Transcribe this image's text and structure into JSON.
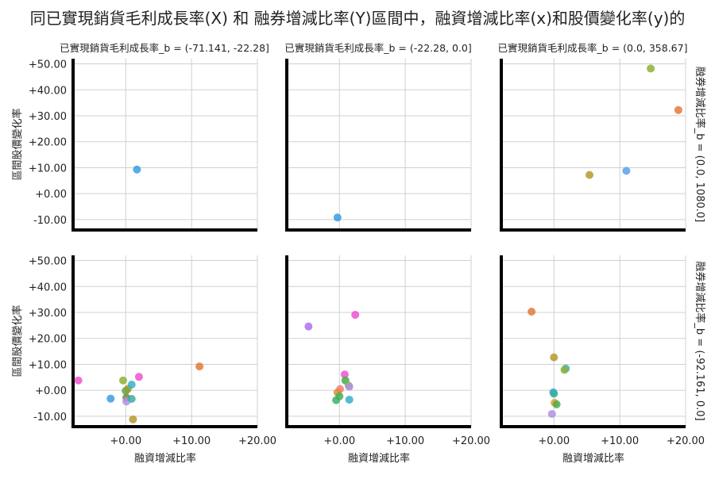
{
  "chart_data": {
    "type": "scatter",
    "title": "同已實現銷貨毛利成長率(X) 和 融券增減比率(Y)區間中，融資增減比率(x)和股價變化率(y)的",
    "xlabel": "融資增減比率",
    "ylabel": "區間股價變化率",
    "xlim": [
      -8,
      20
    ],
    "ylim": [
      -14,
      52
    ],
    "xticks": [
      "+0.00",
      "+10.00",
      "+20.00"
    ],
    "xtick_values": [
      0,
      10,
      20
    ],
    "yticks": [
      "-10.00",
      "+0.00",
      "+10.00",
      "+20.00",
      "+30.00",
      "+40.00",
      "+50.00"
    ],
    "ytick_values": [
      -10,
      0,
      10,
      20,
      30,
      40,
      50
    ],
    "grid": true,
    "col_titles": [
      "已實現銷貨毛利成長率_b = (-71.141, -22.28]",
      "已實現銷貨毛利成長率_b = (-22.28, 0.0]",
      "已實現銷貨毛利成長率_b = (0.0, 358.67]"
    ],
    "row_titles": [
      "融券增減比率_b = (0.0, 1080.0]",
      "融券增減比率_b = (-92.161, 0.0]"
    ],
    "panels": [
      {
        "row": 0,
        "col": 0,
        "points": [
          {
            "x": 1.7,
            "y": 9.3,
            "color": "#3a9ee0"
          }
        ]
      },
      {
        "row": 0,
        "col": 1,
        "points": [
          {
            "x": -0.3,
            "y": -9.2,
            "color": "#3a9ee0"
          }
        ]
      },
      {
        "row": 0,
        "col": 2,
        "points": [
          {
            "x": 14.7,
            "y": 48.2,
            "color": "#8fb03a"
          },
          {
            "x": 18.9,
            "y": 32.2,
            "color": "#e07b39"
          },
          {
            "x": 11.0,
            "y": 8.8,
            "color": "#5aa0e8"
          },
          {
            "x": 5.4,
            "y": 7.2,
            "color": "#b59a2e"
          }
        ]
      },
      {
        "row": 1,
        "col": 0,
        "points": [
          {
            "x": -7.2,
            "y": 3.8,
            "color": "#f052d0"
          },
          {
            "x": -2.3,
            "y": -3.2,
            "color": "#3a9ee0"
          },
          {
            "x": -0.4,
            "y": 3.8,
            "color": "#8fb03a"
          },
          {
            "x": 0.0,
            "y": -0.2,
            "color": "#4caf50"
          },
          {
            "x": 0.3,
            "y": 0.5,
            "color": "#9a9a2e"
          },
          {
            "x": 0.9,
            "y": 2.2,
            "color": "#36b0c8"
          },
          {
            "x": 2.0,
            "y": 5.2,
            "color": "#f052d0"
          },
          {
            "x": 0.1,
            "y": -2.8,
            "color": "#7a8a3a"
          },
          {
            "x": 0.1,
            "y": -4.3,
            "color": "#b090e8"
          },
          {
            "x": 0.9,
            "y": -3.3,
            "color": "#36b0a0"
          },
          {
            "x": 1.1,
            "y": -11.2,
            "color": "#b59a2e"
          },
          {
            "x": 11.2,
            "y": 9.2,
            "color": "#e07b39"
          }
        ]
      },
      {
        "row": 1,
        "col": 1,
        "points": [
          {
            "x": -4.7,
            "y": 24.6,
            "color": "#b070f0"
          },
          {
            "x": 2.4,
            "y": 29.1,
            "color": "#f052d0"
          },
          {
            "x": 0.8,
            "y": 6.1,
            "color": "#f052d0"
          },
          {
            "x": 0.9,
            "y": 3.8,
            "color": "#3bb04a"
          },
          {
            "x": 1.4,
            "y": 1.8,
            "color": "#8fb03a"
          },
          {
            "x": 1.5,
            "y": 1.4,
            "color": "#b090e8"
          },
          {
            "x": 0.1,
            "y": 0.5,
            "color": "#f08080"
          },
          {
            "x": -0.3,
            "y": -0.8,
            "color": "#e08a3a"
          },
          {
            "x": 0.0,
            "y": -2.3,
            "color": "#4caf50"
          },
          {
            "x": -0.5,
            "y": -3.8,
            "color": "#3bb06a"
          },
          {
            "x": 1.5,
            "y": -3.6,
            "color": "#36b0c8"
          }
        ]
      },
      {
        "row": 1,
        "col": 2,
        "points": [
          {
            "x": -3.4,
            "y": 30.3,
            "color": "#e07b39"
          },
          {
            "x": 0.0,
            "y": 12.7,
            "color": "#b59a2e"
          },
          {
            "x": 1.8,
            "y": 8.4,
            "color": "#36b0c8"
          },
          {
            "x": 1.6,
            "y": 7.9,
            "color": "#8fb03a"
          },
          {
            "x": -0.1,
            "y": -0.8,
            "color": "#3a9ee0"
          },
          {
            "x": 0.0,
            "y": -1.3,
            "color": "#36b0a0"
          },
          {
            "x": 0.1,
            "y": -4.8,
            "color": "#e0a030"
          },
          {
            "x": 0.4,
            "y": -5.4,
            "color": "#4caf50"
          },
          {
            "x": -0.3,
            "y": -9.1,
            "color": "#b090e8"
          }
        ]
      }
    ]
  }
}
